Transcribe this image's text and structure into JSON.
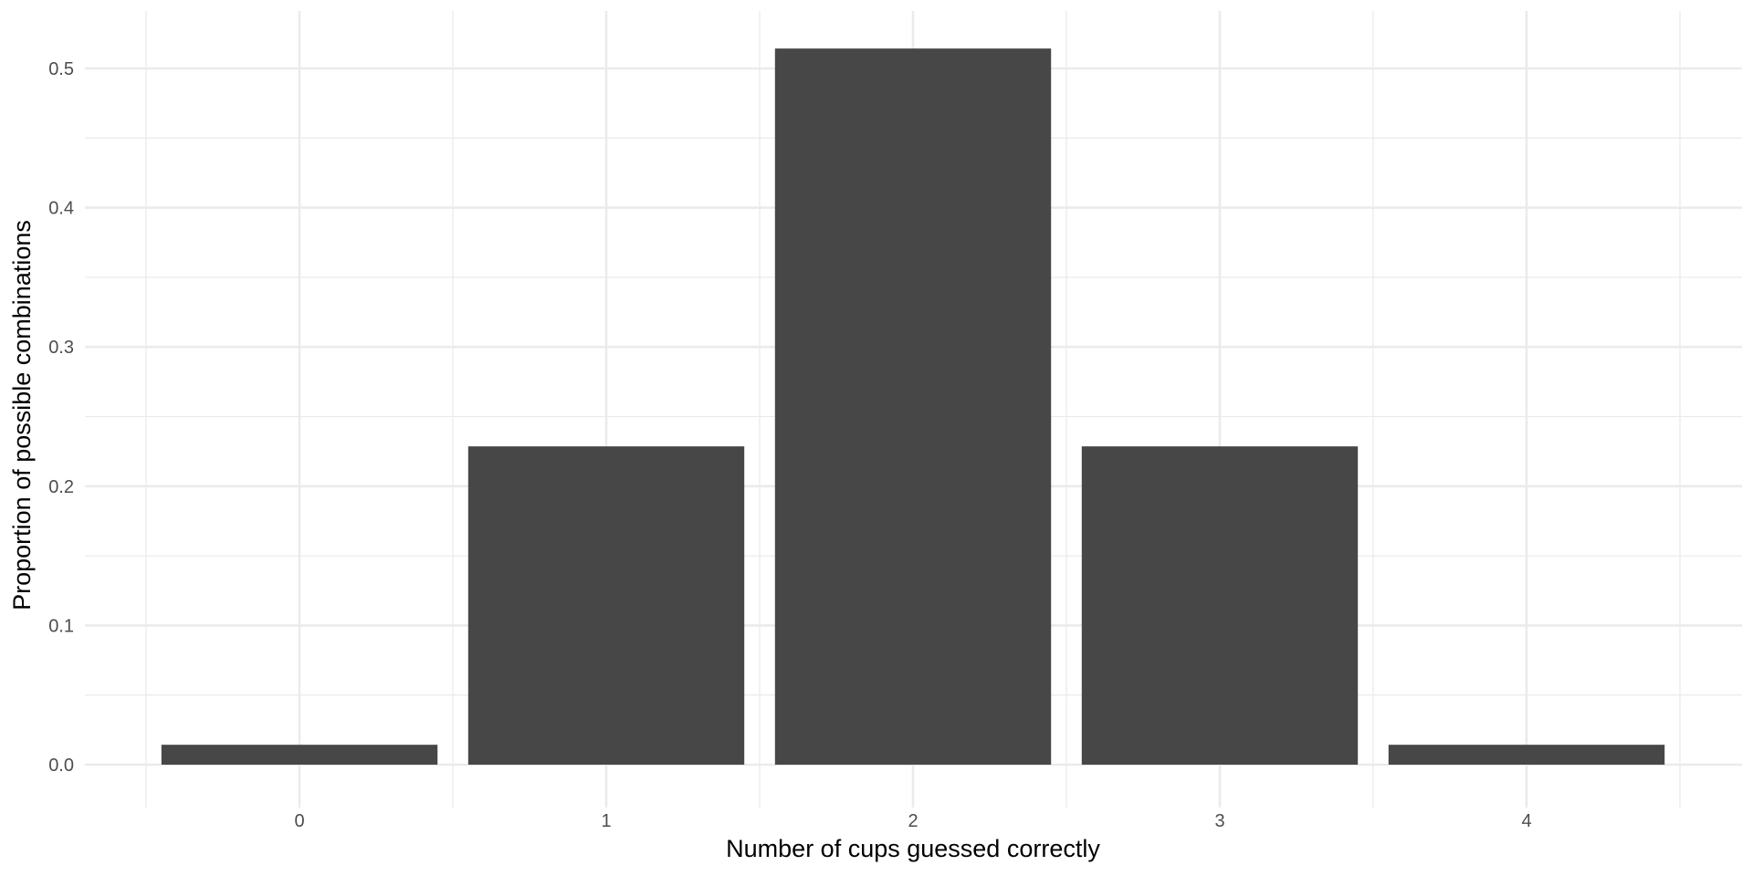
{
  "chart_data": {
    "type": "bar",
    "title": "",
    "xlabel": "Number of cups guessed correctly",
    "ylabel": "Proportion of possible combinations",
    "categories": [
      "0",
      "1",
      "2",
      "3",
      "4"
    ],
    "values": [
      0.0143,
      0.2286,
      0.5143,
      0.2286,
      0.0143
    ],
    "ylim": [
      0,
      0.5
    ],
    "yticks": [
      0.0,
      0.1,
      0.2,
      0.3,
      0.4,
      0.5
    ],
    "ytick_labels": [
      "0.0",
      "0.1",
      "0.2",
      "0.3",
      "0.4",
      "0.5"
    ],
    "grid": true,
    "legend": "none",
    "colors": {
      "bar": "#474747",
      "grid": "#ebebeb",
      "tick_text": "#4d4d4d",
      "axis_title": "#000000",
      "background": "#ffffff"
    }
  }
}
